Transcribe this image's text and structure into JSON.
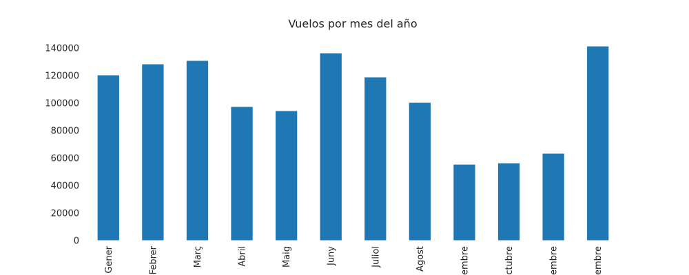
{
  "chart_data": {
    "type": "bar",
    "title": "Vuelos por mes del año",
    "xlabel": "",
    "ylabel": "",
    "categories": [
      "Gener",
      "Febrer",
      "Març",
      "Abril",
      "Maig",
      "Juny",
      "Juliol",
      "Agost",
      "Setembre",
      "Octubre",
      "Novembre",
      "Desembre"
    ],
    "visible_tick_labels": [
      "Gener",
      "Febrer",
      "Març",
      "Abril",
      "Maig",
      "Juny",
      "Juliol",
      "Agost",
      "embre",
      "ctubre",
      "embre",
      "embre"
    ],
    "values": [
      120500,
      128500,
      131000,
      97500,
      94500,
      136500,
      119000,
      100500,
      55500,
      56500,
      63500,
      141500
    ],
    "y_ticks": [
      0,
      20000,
      40000,
      60000,
      80000,
      100000,
      120000,
      140000
    ],
    "ylim": [
      0,
      148500
    ],
    "grid": false,
    "legend": "none",
    "bar_color": "#1f77b4"
  }
}
